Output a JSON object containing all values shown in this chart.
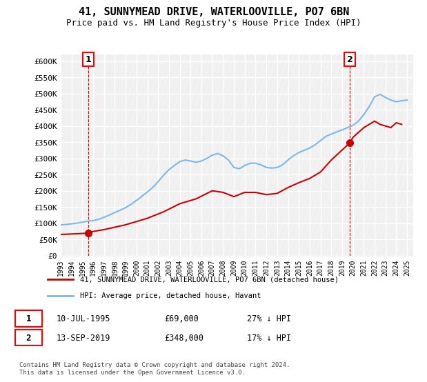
{
  "title": "41, SUNNYMEAD DRIVE, WATERLOOVILLE, PO7 6BN",
  "subtitle": "Price paid vs. HM Land Registry's House Price Index (HPI)",
  "ylim": [
    0,
    620000
  ],
  "yticks": [
    0,
    50000,
    100000,
    150000,
    200000,
    250000,
    300000,
    350000,
    400000,
    450000,
    500000,
    550000,
    600000
  ],
  "ytick_labels": [
    "£0",
    "£50K",
    "£100K",
    "£150K",
    "£200K",
    "£250K",
    "£300K",
    "£350K",
    "£400K",
    "£450K",
    "£500K",
    "£550K",
    "£600K"
  ],
  "sale1_date": 1995.53,
  "sale1_price": 69000,
  "sale2_date": 2019.71,
  "sale2_price": 348000,
  "legend_line1": "41, SUNNYMEAD DRIVE, WATERLOOVILLE, PO7 6BN (detached house)",
  "legend_line2": "HPI: Average price, detached house, Havant",
  "annotation1_label": "1",
  "annotation1_date": "10-JUL-1995",
  "annotation1_price": "£69,000",
  "annotation1_hpi": "27% ↓ HPI",
  "annotation2_label": "2",
  "annotation2_date": "13-SEP-2019",
  "annotation2_price": "£348,000",
  "annotation2_hpi": "17% ↓ HPI",
  "footer": "Contains HM Land Registry data © Crown copyright and database right 2024.\nThis data is licensed under the Open Government Licence v3.0.",
  "hpi_color": "#aad4f5",
  "price_color": "#cc0000",
  "sale_dot_color": "#cc0000",
  "hpi_line_color": "#7ab8e8",
  "background_color": "#f0f0f0",
  "hpi_data_x": [
    1993,
    1993.5,
    1994,
    1994.5,
    1995,
    1995.5,
    1996,
    1996.5,
    1997,
    1997.5,
    1998,
    1998.5,
    1999,
    1999.5,
    2000,
    2000.5,
    2001,
    2001.5,
    2002,
    2002.5,
    2003,
    2003.5,
    2004,
    2004.5,
    2005,
    2005.5,
    2006,
    2006.5,
    2007,
    2007.5,
    2008,
    2008.5,
    2009,
    2009.5,
    2010,
    2010.5,
    2011,
    2011.5,
    2012,
    2012.5,
    2013,
    2013.5,
    2014,
    2014.5,
    2015,
    2015.5,
    2016,
    2016.5,
    2017,
    2017.5,
    2018,
    2018.5,
    2019,
    2019.5,
    2020,
    2020.5,
    2021,
    2021.5,
    2022,
    2022.5,
    2023,
    2023.5,
    2024,
    2024.5,
    2025
  ],
  "hpi_data_y": [
    95000,
    96000,
    98000,
    100000,
    103000,
    106000,
    108000,
    112000,
    118000,
    125000,
    133000,
    140000,
    148000,
    158000,
    170000,
    183000,
    196000,
    210000,
    228000,
    248000,
    265000,
    278000,
    290000,
    295000,
    292000,
    288000,
    292000,
    300000,
    310000,
    315000,
    308000,
    295000,
    272000,
    268000,
    278000,
    285000,
    285000,
    280000,
    272000,
    270000,
    272000,
    280000,
    295000,
    308000,
    318000,
    325000,
    332000,
    342000,
    355000,
    368000,
    375000,
    382000,
    388000,
    395000,
    402000,
    415000,
    435000,
    460000,
    490000,
    498000,
    488000,
    480000,
    475000,
    478000,
    480000
  ],
  "price_data_x": [
    1993,
    1995.53,
    1995.6,
    1997,
    1999,
    2001,
    2002.5,
    2004,
    2005.5,
    2007,
    2008,
    2009,
    2010,
    2011,
    2012,
    2013,
    2014,
    2015,
    2016,
    2017,
    2018,
    2019.71,
    2020,
    2021,
    2022,
    2022.5,
    2023,
    2023.5,
    2024,
    2024.5
  ],
  "price_data_y": [
    65000,
    69000,
    72000,
    80000,
    95000,
    115000,
    135000,
    160000,
    175000,
    200000,
    195000,
    182000,
    195000,
    195000,
    188000,
    192000,
    210000,
    225000,
    238000,
    258000,
    295000,
    348000,
    365000,
    395000,
    415000,
    405000,
    400000,
    395000,
    410000,
    405000
  ]
}
